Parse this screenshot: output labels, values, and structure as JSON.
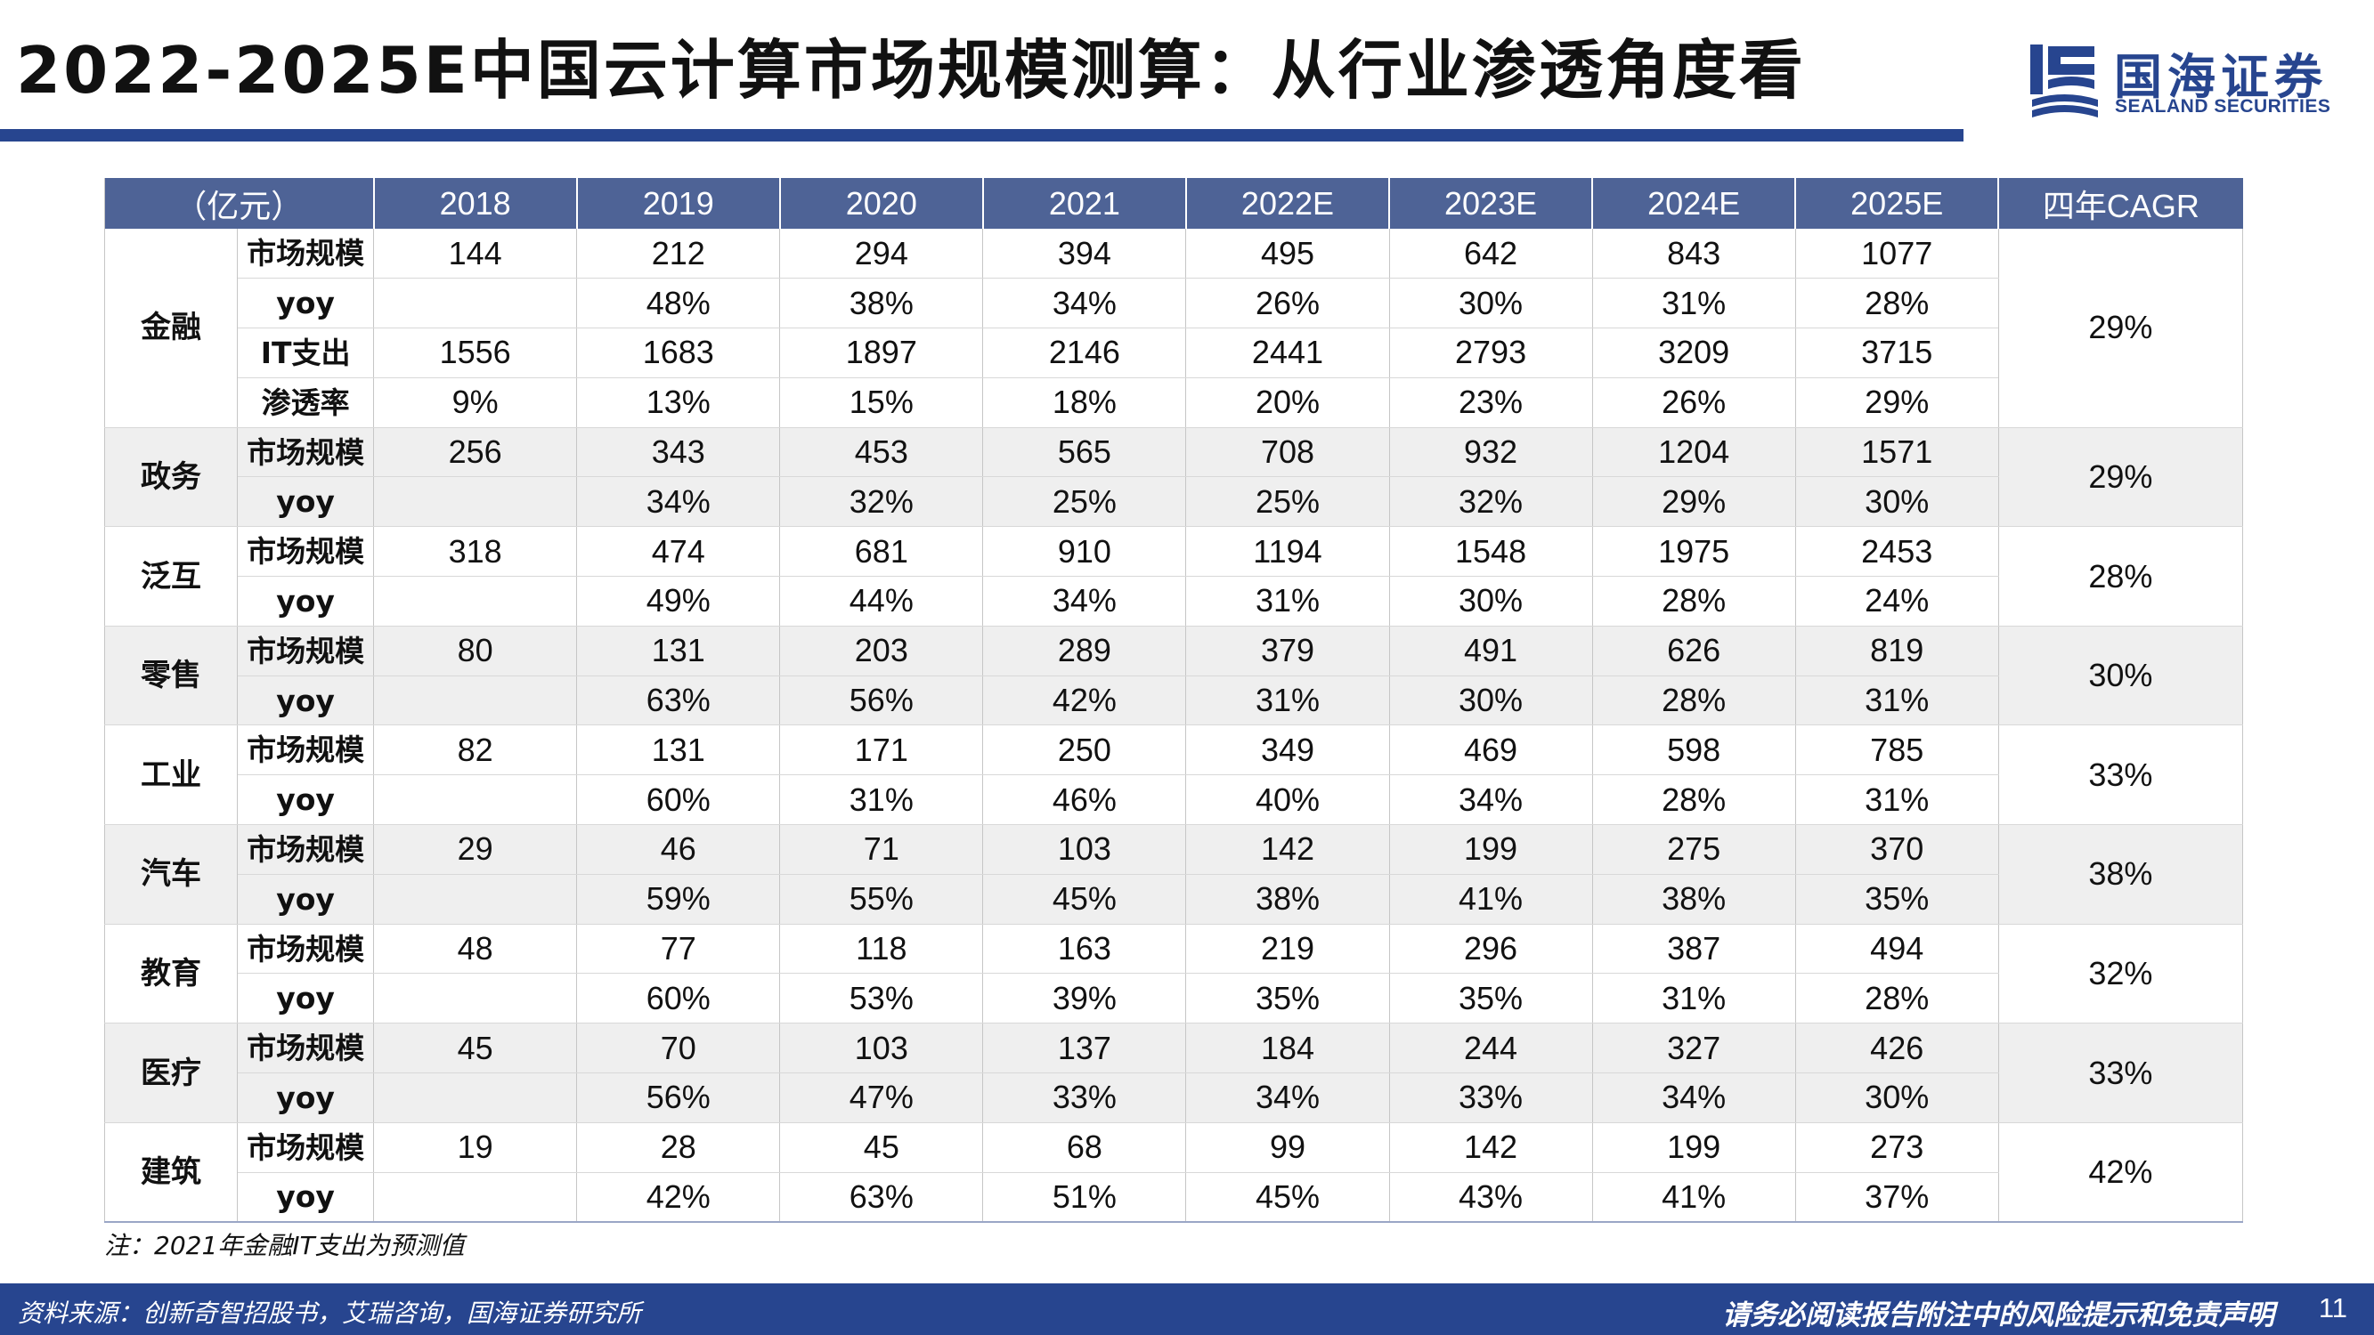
{
  "header": {
    "title": "2022-2025E中国云计算市场规模测算：从行业渗透角度看",
    "logo_cn": "国海证券",
    "logo_en": "SEALAND SECURITIES"
  },
  "table": {
    "headers": [
      "（亿元）",
      "2018",
      "2019",
      "2020",
      "2021",
      "2022E",
      "2023E",
      "2024E",
      "2025E",
      "四年CAGR"
    ],
    "groups": [
      {
        "industry": "金融",
        "cagr": "29%",
        "shaded": false,
        "rows": [
          {
            "metric": "市场规模",
            "values": [
              "144",
              "212",
              "294",
              "394",
              "495",
              "642",
              "843",
              "1077"
            ]
          },
          {
            "metric": "yoy",
            "values": [
              "",
              "48%",
              "38%",
              "34%",
              "26%",
              "30%",
              "31%",
              "28%"
            ]
          },
          {
            "metric": "IT支出",
            "values": [
              "1556",
              "1683",
              "1897",
              "2146",
              "2441",
              "2793",
              "3209",
              "3715"
            ]
          },
          {
            "metric": "渗透率",
            "values": [
              "9%",
              "13%",
              "15%",
              "18%",
              "20%",
              "23%",
              "26%",
              "29%"
            ]
          }
        ]
      },
      {
        "industry": "政务",
        "cagr": "29%",
        "shaded": true,
        "rows": [
          {
            "metric": "市场规模",
            "values": [
              "256",
              "343",
              "453",
              "565",
              "708",
              "932",
              "1204",
              "1571"
            ]
          },
          {
            "metric": "yoy",
            "values": [
              "",
              "34%",
              "32%",
              "25%",
              "25%",
              "32%",
              "29%",
              "30%"
            ]
          }
        ]
      },
      {
        "industry": "泛互",
        "cagr": "28%",
        "shaded": false,
        "rows": [
          {
            "metric": "市场规模",
            "values": [
              "318",
              "474",
              "681",
              "910",
              "1194",
              "1548",
              "1975",
              "2453"
            ]
          },
          {
            "metric": "yoy",
            "values": [
              "",
              "49%",
              "44%",
              "34%",
              "31%",
              "30%",
              "28%",
              "24%"
            ]
          }
        ]
      },
      {
        "industry": "零售",
        "cagr": "30%",
        "shaded": true,
        "rows": [
          {
            "metric": "市场规模",
            "values": [
              "80",
              "131",
              "203",
              "289",
              "379",
              "491",
              "626",
              "819"
            ]
          },
          {
            "metric": "yoy",
            "values": [
              "",
              "63%",
              "56%",
              "42%",
              "31%",
              "30%",
              "28%",
              "31%"
            ]
          }
        ]
      },
      {
        "industry": "工业",
        "cagr": "33%",
        "shaded": false,
        "rows": [
          {
            "metric": "市场规模",
            "values": [
              "82",
              "131",
              "171",
              "250",
              "349",
              "469",
              "598",
              "785"
            ]
          },
          {
            "metric": "yoy",
            "values": [
              "",
              "60%",
              "31%",
              "46%",
              "40%",
              "34%",
              "28%",
              "31%"
            ]
          }
        ]
      },
      {
        "industry": "汽车",
        "cagr": "38%",
        "shaded": true,
        "rows": [
          {
            "metric": "市场规模",
            "values": [
              "29",
              "46",
              "71",
              "103",
              "142",
              "199",
              "275",
              "370"
            ]
          },
          {
            "metric": "yoy",
            "values": [
              "",
              "59%",
              "55%",
              "45%",
              "38%",
              "41%",
              "38%",
              "35%"
            ]
          }
        ]
      },
      {
        "industry": "教育",
        "cagr": "32%",
        "shaded": false,
        "rows": [
          {
            "metric": "市场规模",
            "values": [
              "48",
              "77",
              "118",
              "163",
              "219",
              "296",
              "387",
              "494"
            ]
          },
          {
            "metric": "yoy",
            "values": [
              "",
              "60%",
              "53%",
              "39%",
              "35%",
              "35%",
              "31%",
              "28%"
            ]
          }
        ]
      },
      {
        "industry": "医疗",
        "cagr": "33%",
        "shaded": true,
        "rows": [
          {
            "metric": "市场规模",
            "values": [
              "45",
              "70",
              "103",
              "137",
              "184",
              "244",
              "327",
              "426"
            ]
          },
          {
            "metric": "yoy",
            "values": [
              "",
              "56%",
              "47%",
              "33%",
              "34%",
              "33%",
              "34%",
              "30%"
            ]
          }
        ]
      },
      {
        "industry": "建筑",
        "cagr": "42%",
        "shaded": false,
        "rows": [
          {
            "metric": "市场规模",
            "values": [
              "19",
              "28",
              "45",
              "68",
              "99",
              "142",
              "199",
              "273"
            ]
          },
          {
            "metric": "yoy",
            "values": [
              "",
              "42%",
              "63%",
              "51%",
              "45%",
              "43%",
              "41%",
              "37%"
            ]
          }
        ]
      }
    ]
  },
  "note": "注：2021年金融IT支出为预测值",
  "footer": {
    "source": "资料来源：创新奇智招股书，艾瑞咨询，国海证券研究所",
    "disclaimer": "请务必阅读报告附注中的风险提示和免责声明",
    "page_number": "11"
  },
  "colors": {
    "brand_blue": "#27458f",
    "header_fill": "#4e6396",
    "shaded_row": "#efefef"
  }
}
